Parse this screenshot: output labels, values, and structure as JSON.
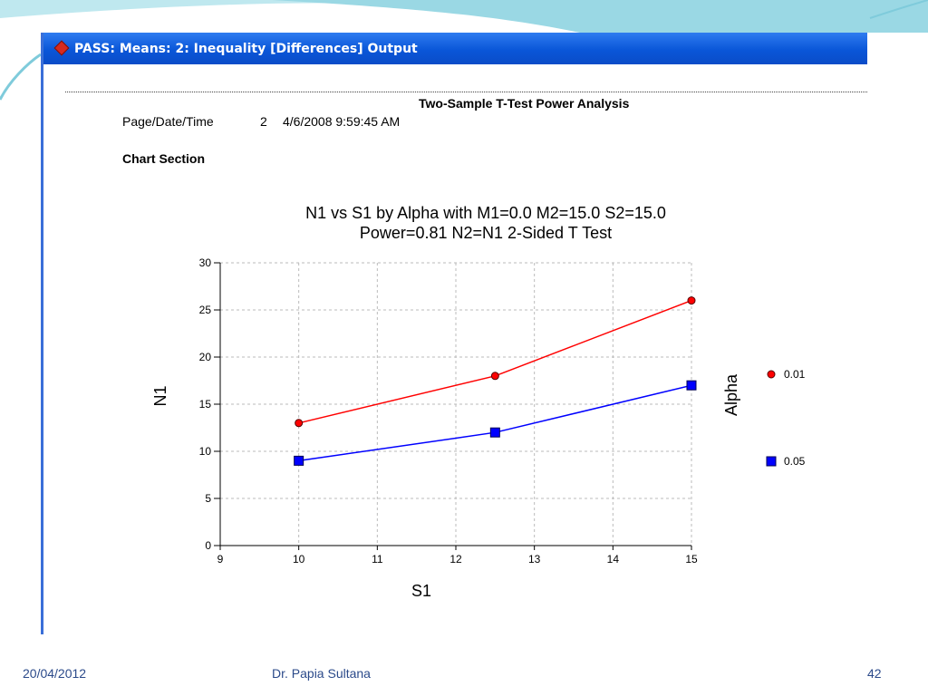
{
  "window": {
    "title": "PASS: Means: 2: Inequality [Differences] Output",
    "title_icon": "pass-app-icon"
  },
  "report": {
    "title": "Two-Sample T-Test Power Analysis",
    "page_date_time_label": "Page/Date/Time",
    "page_number": "2",
    "date_time": "4/6/2008 9:59:45 AM",
    "section_title": "Chart Section"
  },
  "chart_data": {
    "type": "line",
    "title": "N1 vs S1 by Alpha with M1=0.0 M2=15.0 S2=15.0",
    "subtitle": "Power=0.81 N2=N1 2-Sided T Test",
    "xlabel": "S1",
    "ylabel": "N1",
    "legend_title": "Alpha",
    "legend_position": "right",
    "xlim": [
      9,
      15
    ],
    "ylim": [
      0,
      30
    ],
    "xticks": [
      9,
      10,
      11,
      12,
      13,
      14,
      15
    ],
    "yticks": [
      0,
      5,
      10,
      15,
      20,
      25,
      30
    ],
    "grid": true,
    "x": [
      10,
      12.5,
      15
    ],
    "series": [
      {
        "name": "0.01",
        "values": [
          13,
          18,
          26
        ],
        "color": "#ff0000",
        "marker": "circle"
      },
      {
        "name": "0.05",
        "values": [
          9,
          12,
          17
        ],
        "color": "#0000ff",
        "marker": "square"
      }
    ]
  },
  "footer": {
    "date": "20/04/2012",
    "author": "Dr. Papia Sultana",
    "slide_number": "42"
  },
  "colors": {
    "titlebar": "#0a56d8",
    "footer_text": "#2b4a8a",
    "swoosh": "#8fd3e0"
  }
}
